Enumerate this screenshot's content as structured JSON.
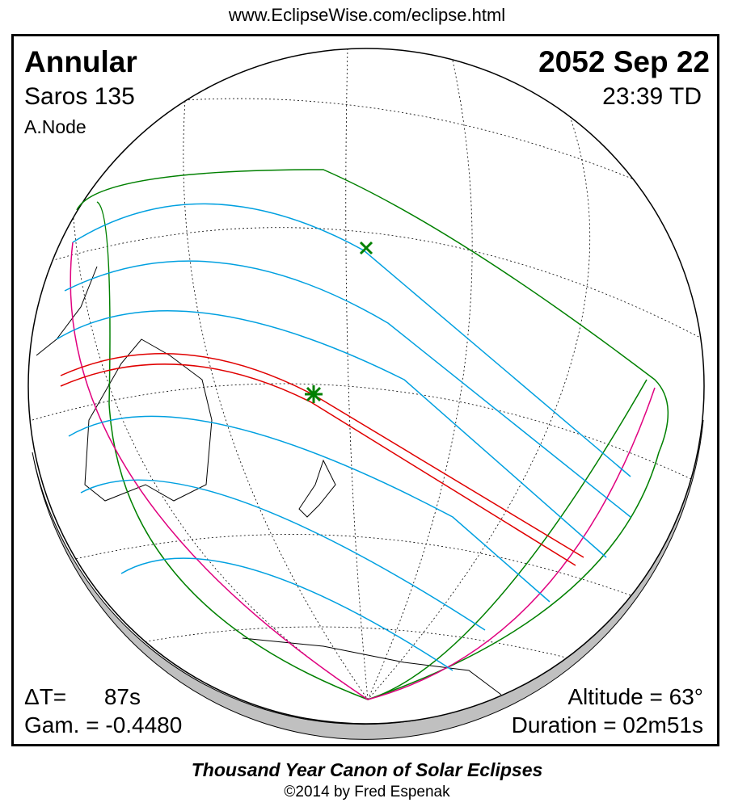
{
  "header": {
    "url": "www.EclipseWise.com/eclipse.html"
  },
  "eclipse": {
    "type": "Annular",
    "saros": "Saros 135",
    "node": "A.Node",
    "date": "2052 Sep 22",
    "time": "23:39 TD",
    "delta_t": "ΔT=      87s",
    "gamma": "Gam. = -0.4480",
    "altitude": "Altitude = 63°",
    "duration": "Duration = 02m51s"
  },
  "footer": {
    "canon": "Thousand Year Canon of Solar Eclipses",
    "copyright": "©2014 by Fred Espenak"
  },
  "colors": {
    "central_path": "#e00000",
    "penumbral_limits": "#00a0e0",
    "outer_limits": "#008000",
    "rise_set": "#e0007f",
    "shadow": "#c0c0c0"
  }
}
